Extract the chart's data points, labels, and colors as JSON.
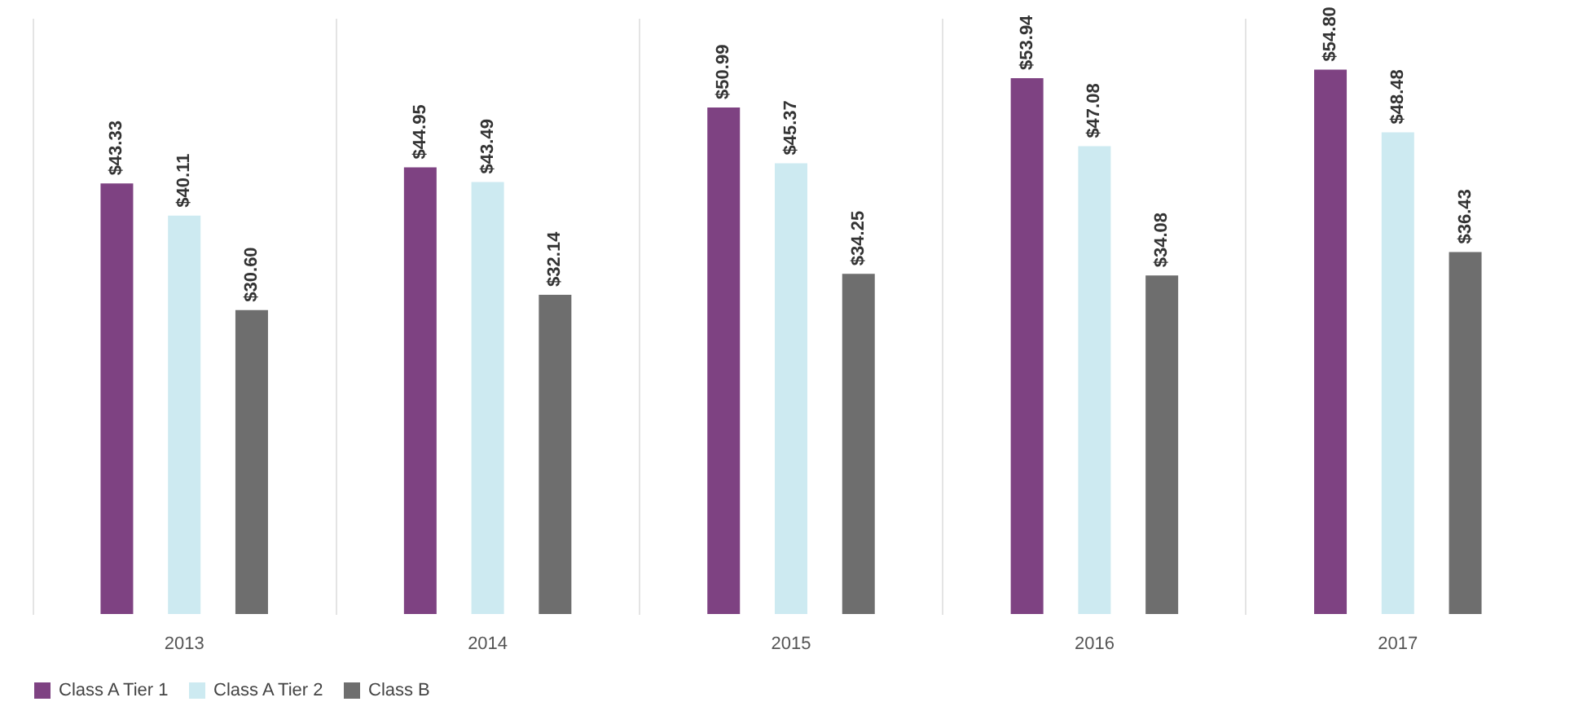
{
  "chart_data": {
    "type": "bar",
    "categories": [
      "2013",
      "2014",
      "2015",
      "2016",
      "2017"
    ],
    "series": [
      {
        "name": "Class A Tier 1",
        "color": "#7e4282",
        "values": [
          43.33,
          44.95,
          50.99,
          53.94,
          54.8
        ],
        "value_labels": [
          "$43.33",
          "$44.95",
          "$50.99",
          "$53.94",
          "$54.80"
        ]
      },
      {
        "name": "Class A Tier 2",
        "color": "#cdeaf1",
        "values": [
          40.11,
          43.49,
          45.37,
          47.08,
          48.48
        ],
        "value_labels": [
          "$40.11",
          "$43.49",
          "$45.37",
          "$47.08",
          "$48.48"
        ]
      },
      {
        "name": "Class B",
        "color": "#6e6e6e",
        "values": [
          30.6,
          32.14,
          34.25,
          34.08,
          36.43
        ],
        "value_labels": [
          "$30.60",
          "$32.14",
          "$34.25",
          "$34.08",
          "$36.43"
        ]
      }
    ],
    "ylim": [
      0,
      60
    ],
    "tick_labels": "x",
    "grid": "x",
    "legend": "bottom"
  }
}
